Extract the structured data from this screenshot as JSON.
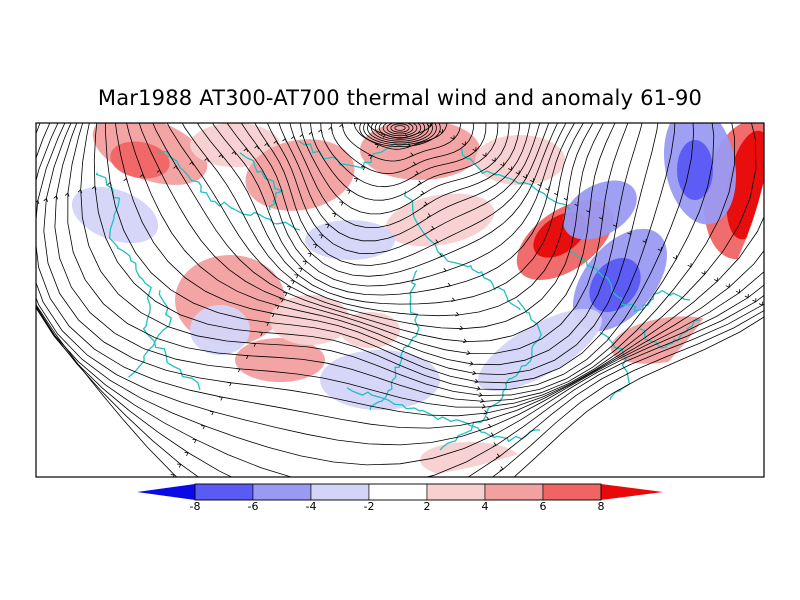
{
  "title": "Mar1988 AT300-AT700 thermal wind and anomaly 61-90",
  "colorbar": {
    "levels": [
      "-8",
      "-6",
      "-4",
      "-2",
      "2",
      "4",
      "6",
      "8"
    ],
    "colors": [
      "#0a0ae6",
      "#5a5af5",
      "#9a9af2",
      "#d4d4f8",
      "#ffffff",
      "#f8d0d0",
      "#f2a0a0",
      "#f06464",
      "#e80a0a"
    ]
  },
  "map": {
    "projection": "polar stereographic (Northern Hemisphere, upper half)",
    "coastline_color": "#20c0c0",
    "streamline_color": "#000000"
  }
}
